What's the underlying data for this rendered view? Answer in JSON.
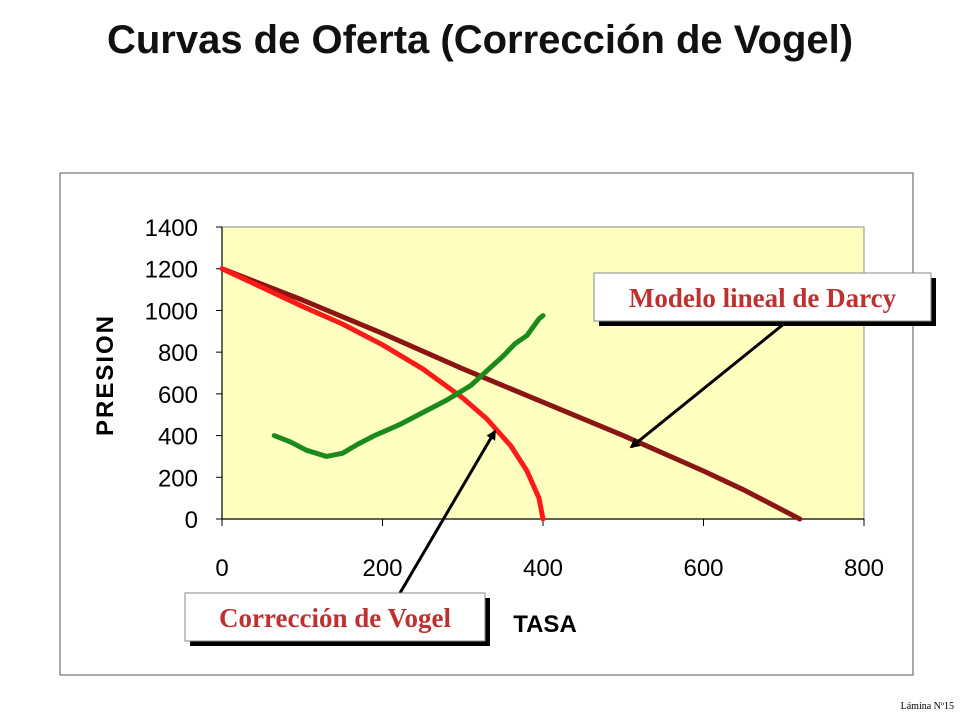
{
  "slide": {
    "title": "Curvas de Oferta (Corrección de Vogel)",
    "footer": "Lámina Nº15"
  },
  "chart_data": {
    "type": "line",
    "xlabel": "TASA",
    "ylabel": "PRESION",
    "xlim": [
      0,
      800
    ],
    "ylim": [
      0,
      1400
    ],
    "xticks": [
      0,
      200,
      400,
      600,
      800
    ],
    "yticks": [
      0,
      200,
      400,
      600,
      800,
      1000,
      1200,
      1400
    ],
    "grid": false,
    "plot_background": "#FFFFC0",
    "series": [
      {
        "color": "#8B1515",
        "x": [
          0,
          100,
          200,
          300,
          400,
          500,
          600,
          650,
          720
        ],
        "y": [
          1200,
          1050,
          890,
          720,
          560,
          400,
          230,
          140,
          0
        ]
      },
      {
        "color": "#FF1A1A",
        "x": [
          0,
          50,
          100,
          150,
          200,
          250,
          300,
          330,
          360,
          380,
          395,
          400
        ],
        "y": [
          1200,
          1110,
          1020,
          935,
          835,
          720,
          580,
          480,
          350,
          230,
          100,
          0
        ]
      },
      {
        "color": "#1A8A1A",
        "x": [
          65,
          85,
          105,
          130,
          150,
          170,
          190,
          220,
          250,
          280,
          310,
          330,
          350,
          365,
          380,
          395,
          400
        ],
        "y": [
          400,
          370,
          330,
          300,
          315,
          360,
          400,
          450,
          510,
          570,
          640,
          710,
          780,
          840,
          880,
          960,
          975
        ]
      }
    ],
    "annotations": [
      {
        "text": "Modelo lineal de Darcy",
        "color": "#C03030",
        "arrow_to": [
          510,
          345
        ]
      },
      {
        "text": "Corrección de Vogel",
        "color": "#C03030",
        "arrow_to": [
          340,
          420
        ]
      }
    ]
  }
}
